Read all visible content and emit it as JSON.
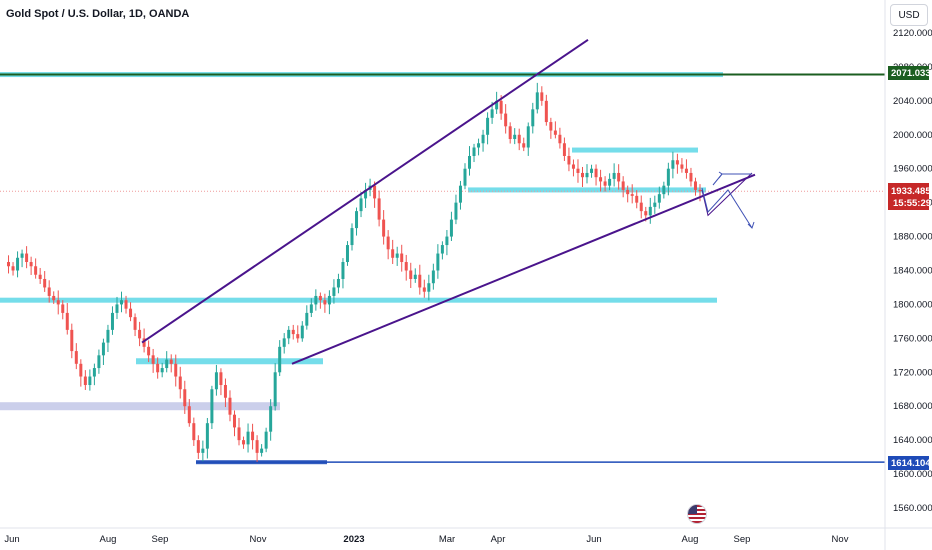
{
  "header": {
    "title": "Gold Spot / U.S. Dollar, 1D, OANDA",
    "currency": "USD"
  },
  "price_tags": {
    "resistance": "2071.033",
    "current_price": "1933.485",
    "countdown": "15:55:29",
    "support": "1614.104"
  },
  "colors": {
    "up_candle": "#26a69a",
    "down_candle": "#ef5350",
    "zone": "#66d9e8",
    "zone_light": "#c5cae9",
    "channel": "#4a148c",
    "resistance_line": "#1b5e20",
    "support_line": "#1e4bb8",
    "current_price_tag": "#c62828"
  },
  "chart_data": {
    "type": "candlestick",
    "title": "Gold Spot / U.S. Dollar, 1D, OANDA",
    "ylim": [
      1545,
      2145
    ],
    "y_ticks": [
      "1560.000",
      "1600.000",
      "1640.000",
      "1680.000",
      "1720.000",
      "1760.000",
      "1800.000",
      "1840.000",
      "1880.000",
      "1920.000",
      "1960.000",
      "2000.000",
      "2040.000",
      "2080.000",
      "2120.000"
    ],
    "x_ticks": [
      "Jun",
      "Aug",
      "Sep",
      "Nov",
      "2023",
      "Mar",
      "Apr",
      "Jun",
      "Aug",
      "Sep",
      "Nov"
    ],
    "series": [
      {
        "values": [
          1850,
          1845,
          1840,
          1855,
          1860,
          1850,
          1845,
          1835,
          1830,
          1820,
          1810,
          1805,
          1800,
          1790,
          1770,
          1745,
          1730,
          1715,
          1705,
          1715,
          1725,
          1740,
          1755,
          1770,
          1790,
          1800,
          1805,
          1795,
          1785,
          1770,
          1760,
          1750,
          1740,
          1730,
          1720,
          1725,
          1735,
          1730,
          1715,
          1700,
          1680,
          1660,
          1640,
          1625,
          1630,
          1660,
          1700,
          1720,
          1705,
          1690,
          1670,
          1655,
          1640,
          1635,
          1650,
          1640,
          1625,
          1630,
          1650,
          1680,
          1720,
          1750,
          1760,
          1770,
          1765,
          1760,
          1775,
          1790,
          1800,
          1810,
          1805,
          1800,
          1810,
          1820,
          1830,
          1850,
          1870,
          1890,
          1910,
          1925,
          1935,
          1940,
          1925,
          1900,
          1880,
          1865,
          1855,
          1860,
          1850,
          1840,
          1830,
          1835,
          1820,
          1815,
          1825,
          1840,
          1860,
          1870,
          1880,
          1900,
          1920,
          1940,
          1960,
          1975,
          1985,
          1990,
          2000,
          2020,
          2030,
          2040,
          2025,
          2010,
          1995,
          2000,
          1990,
          1985,
          2010,
          2030,
          2050,
          2040,
          2015,
          2005,
          2000,
          1990,
          1975,
          1965,
          1960,
          1955,
          1950,
          1955,
          1960,
          1950,
          1945,
          1940,
          1948,
          1955,
          1945,
          1935,
          1930,
          1928,
          1920,
          1910,
          1905,
          1915,
          1920,
          1930,
          1940,
          1960,
          1970,
          1965,
          1960,
          1955,
          1945,
          1935,
          1933.485
        ]
      }
    ],
    "annotations": [
      "2071.033",
      "1933.485",
      "15:55:29",
      "1614.104"
    ]
  }
}
